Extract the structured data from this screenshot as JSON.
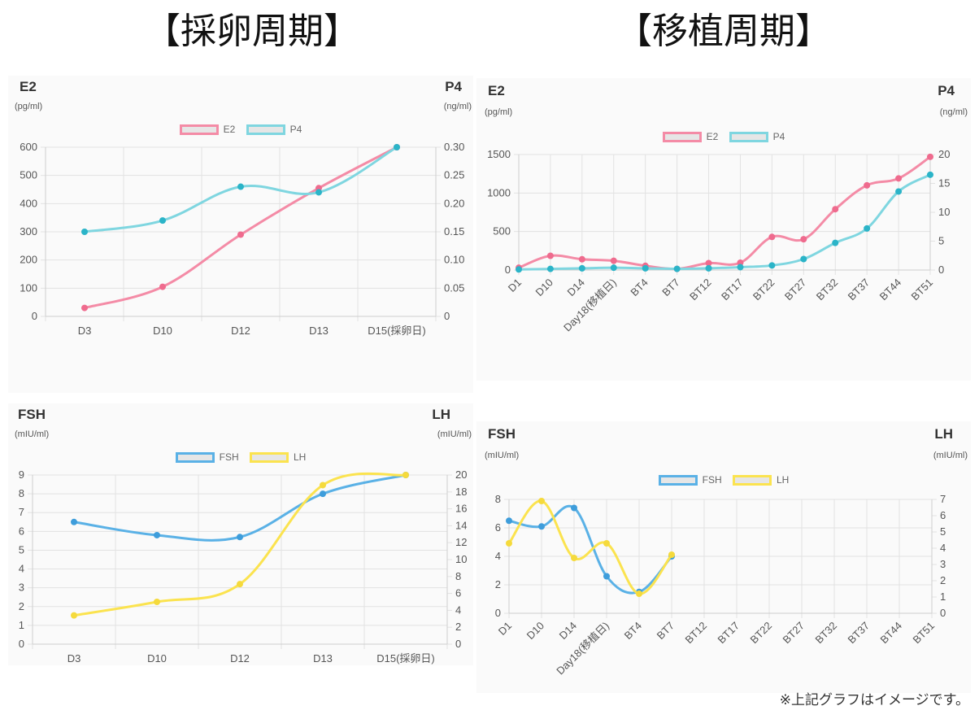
{
  "titles": {
    "left": "【採卵周期】",
    "right": "【移植周期】"
  },
  "note": "※上記グラフはイメージです。",
  "colors": {
    "e2": "#f48ba6",
    "e2_point": "#ef6b8e",
    "p4": "#7fd6e0",
    "p4_point": "#2bb4c8",
    "fsh": "#5ab1e6",
    "fsh_point": "#3e9ddb",
    "lh": "#fbe34f",
    "lh_point": "#f5da3c",
    "grid": "#e2e2e2"
  },
  "chart_data": [
    {
      "id": "egg-e2p4",
      "type": "line",
      "left_title": "E2",
      "left_unit": "(pg/ml)",
      "right_title": "P4",
      "right_unit": "(ng/ml)",
      "legend_position": "top",
      "categories": [
        "D3",
        "D10",
        "D12",
        "D13",
        "D15(採卵日)"
      ],
      "y_left": {
        "min": 0,
        "max": 600,
        "step": 100,
        "ticks": [
          "0",
          "100",
          "200",
          "300",
          "400",
          "500",
          "600"
        ]
      },
      "y_right": {
        "min": 0,
        "max": 0.3,
        "step": 0.05,
        "ticks": [
          "0",
          "0.05",
          "0.10",
          "0.15",
          "0.20",
          "0.25",
          "0.30"
        ]
      },
      "series": [
        {
          "name": "E2",
          "axis": "left",
          "color_key": "e2",
          "values": [
            30,
            105,
            290,
            455,
            600
          ]
        },
        {
          "name": "P4",
          "axis": "right",
          "color_key": "p4",
          "values": [
            0.15,
            0.17,
            0.23,
            0.22,
            0.3
          ]
        }
      ],
      "grid": true
    },
    {
      "id": "egg-fshlh",
      "type": "line",
      "left_title": "FSH",
      "left_unit": "(mIU/ml)",
      "right_title": "LH",
      "right_unit": "(mIU/ml)",
      "legend_position": "top",
      "categories": [
        "D3",
        "D10",
        "D12",
        "D13",
        "D15(採卵日)"
      ],
      "y_left": {
        "min": 0,
        "max": 9,
        "step": 1,
        "ticks": [
          "0",
          "1",
          "2",
          "3",
          "4",
          "5",
          "6",
          "7",
          "8",
          "9"
        ]
      },
      "y_right": {
        "min": 0,
        "max": 20,
        "step": 2,
        "ticks": [
          "0",
          "2",
          "4",
          "6",
          "8",
          "10",
          "12",
          "14",
          "16",
          "18",
          "20"
        ]
      },
      "series": [
        {
          "name": "FSH",
          "axis": "left",
          "color_key": "fsh",
          "values": [
            6.5,
            5.8,
            5.7,
            8.0,
            9.0
          ]
        },
        {
          "name": "LH",
          "axis": "right",
          "color_key": "lh",
          "values": [
            3.4,
            5.0,
            7.1,
            18.8,
            20.0
          ]
        }
      ],
      "grid": true
    },
    {
      "id": "transfer-e2p4",
      "type": "line",
      "left_title": "E2",
      "left_unit": "(pg/ml)",
      "right_title": "P4",
      "right_unit": "(ng/ml)",
      "legend_position": "top",
      "categories": [
        "D1",
        "D10",
        "D14",
        "Day18(移植日)",
        "BT4",
        "BT7",
        "BT12",
        "BT17",
        "BT22",
        "BT27",
        "BT32",
        "BT37",
        "BT44",
        "BT51"
      ],
      "y_left": {
        "min": 0,
        "max": 1500,
        "step": 500,
        "ticks": [
          "0",
          "500",
          "1000",
          "1500"
        ]
      },
      "y_right": {
        "min": 0,
        "max": 20,
        "step": 5,
        "ticks": [
          "0",
          "5",
          "10",
          "15",
          "20"
        ]
      },
      "series": [
        {
          "name": "E2",
          "axis": "left",
          "color_key": "e2",
          "values": [
            30,
            185,
            140,
            120,
            55,
            15,
            90,
            95,
            430,
            400,
            790,
            1100,
            1190,
            1470
          ]
        },
        {
          "name": "P4",
          "axis": "right",
          "color_key": "p4",
          "values": [
            0.1,
            0.2,
            0.3,
            0.4,
            0.3,
            0.2,
            0.3,
            0.5,
            0.8,
            1.9,
            4.7,
            7.2,
            13.6,
            16.5
          ]
        }
      ],
      "grid": true
    },
    {
      "id": "transfer-fshlh",
      "type": "line",
      "left_title": "FSH",
      "left_unit": "(mIU/ml)",
      "right_title": "LH",
      "right_unit": "(mIU/ml)",
      "legend_position": "top",
      "categories": [
        "D1",
        "D10",
        "D14",
        "Day18(移植日)",
        "BT4",
        "BT7",
        "BT12",
        "BT17",
        "BT22",
        "BT27",
        "BT32",
        "BT37",
        "BT44",
        "BT51"
      ],
      "y_left": {
        "min": 0,
        "max": 8,
        "step": 2,
        "ticks": [
          "0",
          "2",
          "4",
          "6",
          "8"
        ]
      },
      "y_right": {
        "min": 0,
        "max": 7,
        "step": 1,
        "ticks": [
          "0",
          "1",
          "2",
          "3",
          "4",
          "5",
          "6",
          "7"
        ]
      },
      "series": [
        {
          "name": "FSH",
          "axis": "left",
          "color_key": "fsh",
          "values": [
            6.5,
            6.1,
            7.4,
            2.6,
            1.5,
            4.0,
            null,
            null,
            null,
            null,
            null,
            null,
            null,
            null
          ]
        },
        {
          "name": "LH",
          "axis": "right",
          "color_key": "lh",
          "values": [
            4.3,
            6.9,
            3.4,
            4.3,
            1.2,
            3.6,
            null,
            null,
            null,
            null,
            null,
            null,
            null,
            null
          ]
        }
      ],
      "grid": true
    }
  ]
}
